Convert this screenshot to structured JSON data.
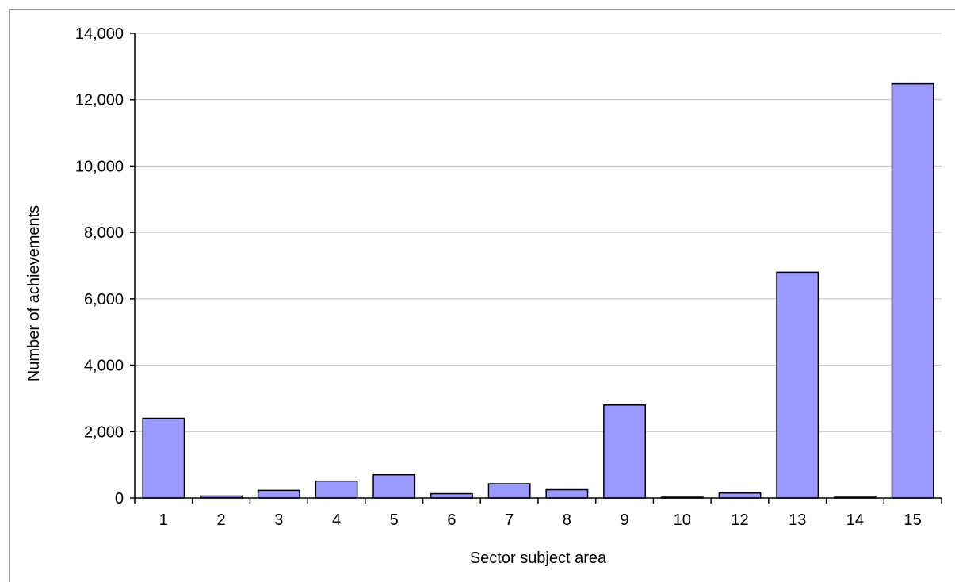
{
  "chart_data": {
    "type": "bar",
    "title": "",
    "xlabel": "Sector subject area",
    "ylabel": "Number of achievements",
    "categories": [
      "1",
      "2",
      "3",
      "4",
      "5",
      "6",
      "7",
      "8",
      "9",
      "10",
      "12",
      "13",
      "14",
      "15"
    ],
    "values": [
      2400,
      60,
      230,
      510,
      700,
      130,
      430,
      250,
      2800,
      10,
      150,
      6800,
      10,
      12480
    ],
    "ylim": [
      0,
      14000
    ],
    "yticks": [
      0,
      2000,
      4000,
      6000,
      8000,
      10000,
      12000,
      14000
    ],
    "ytick_labels": [
      "0",
      "2,000",
      "4,000",
      "6,000",
      "8,000",
      "10,000",
      "12,000",
      "14,000"
    ],
    "grid": true,
    "legend": "none",
    "bar_color": "#9999ff",
    "bar_edge_color": "#000000",
    "grid_color": "#c0c0c0"
  }
}
